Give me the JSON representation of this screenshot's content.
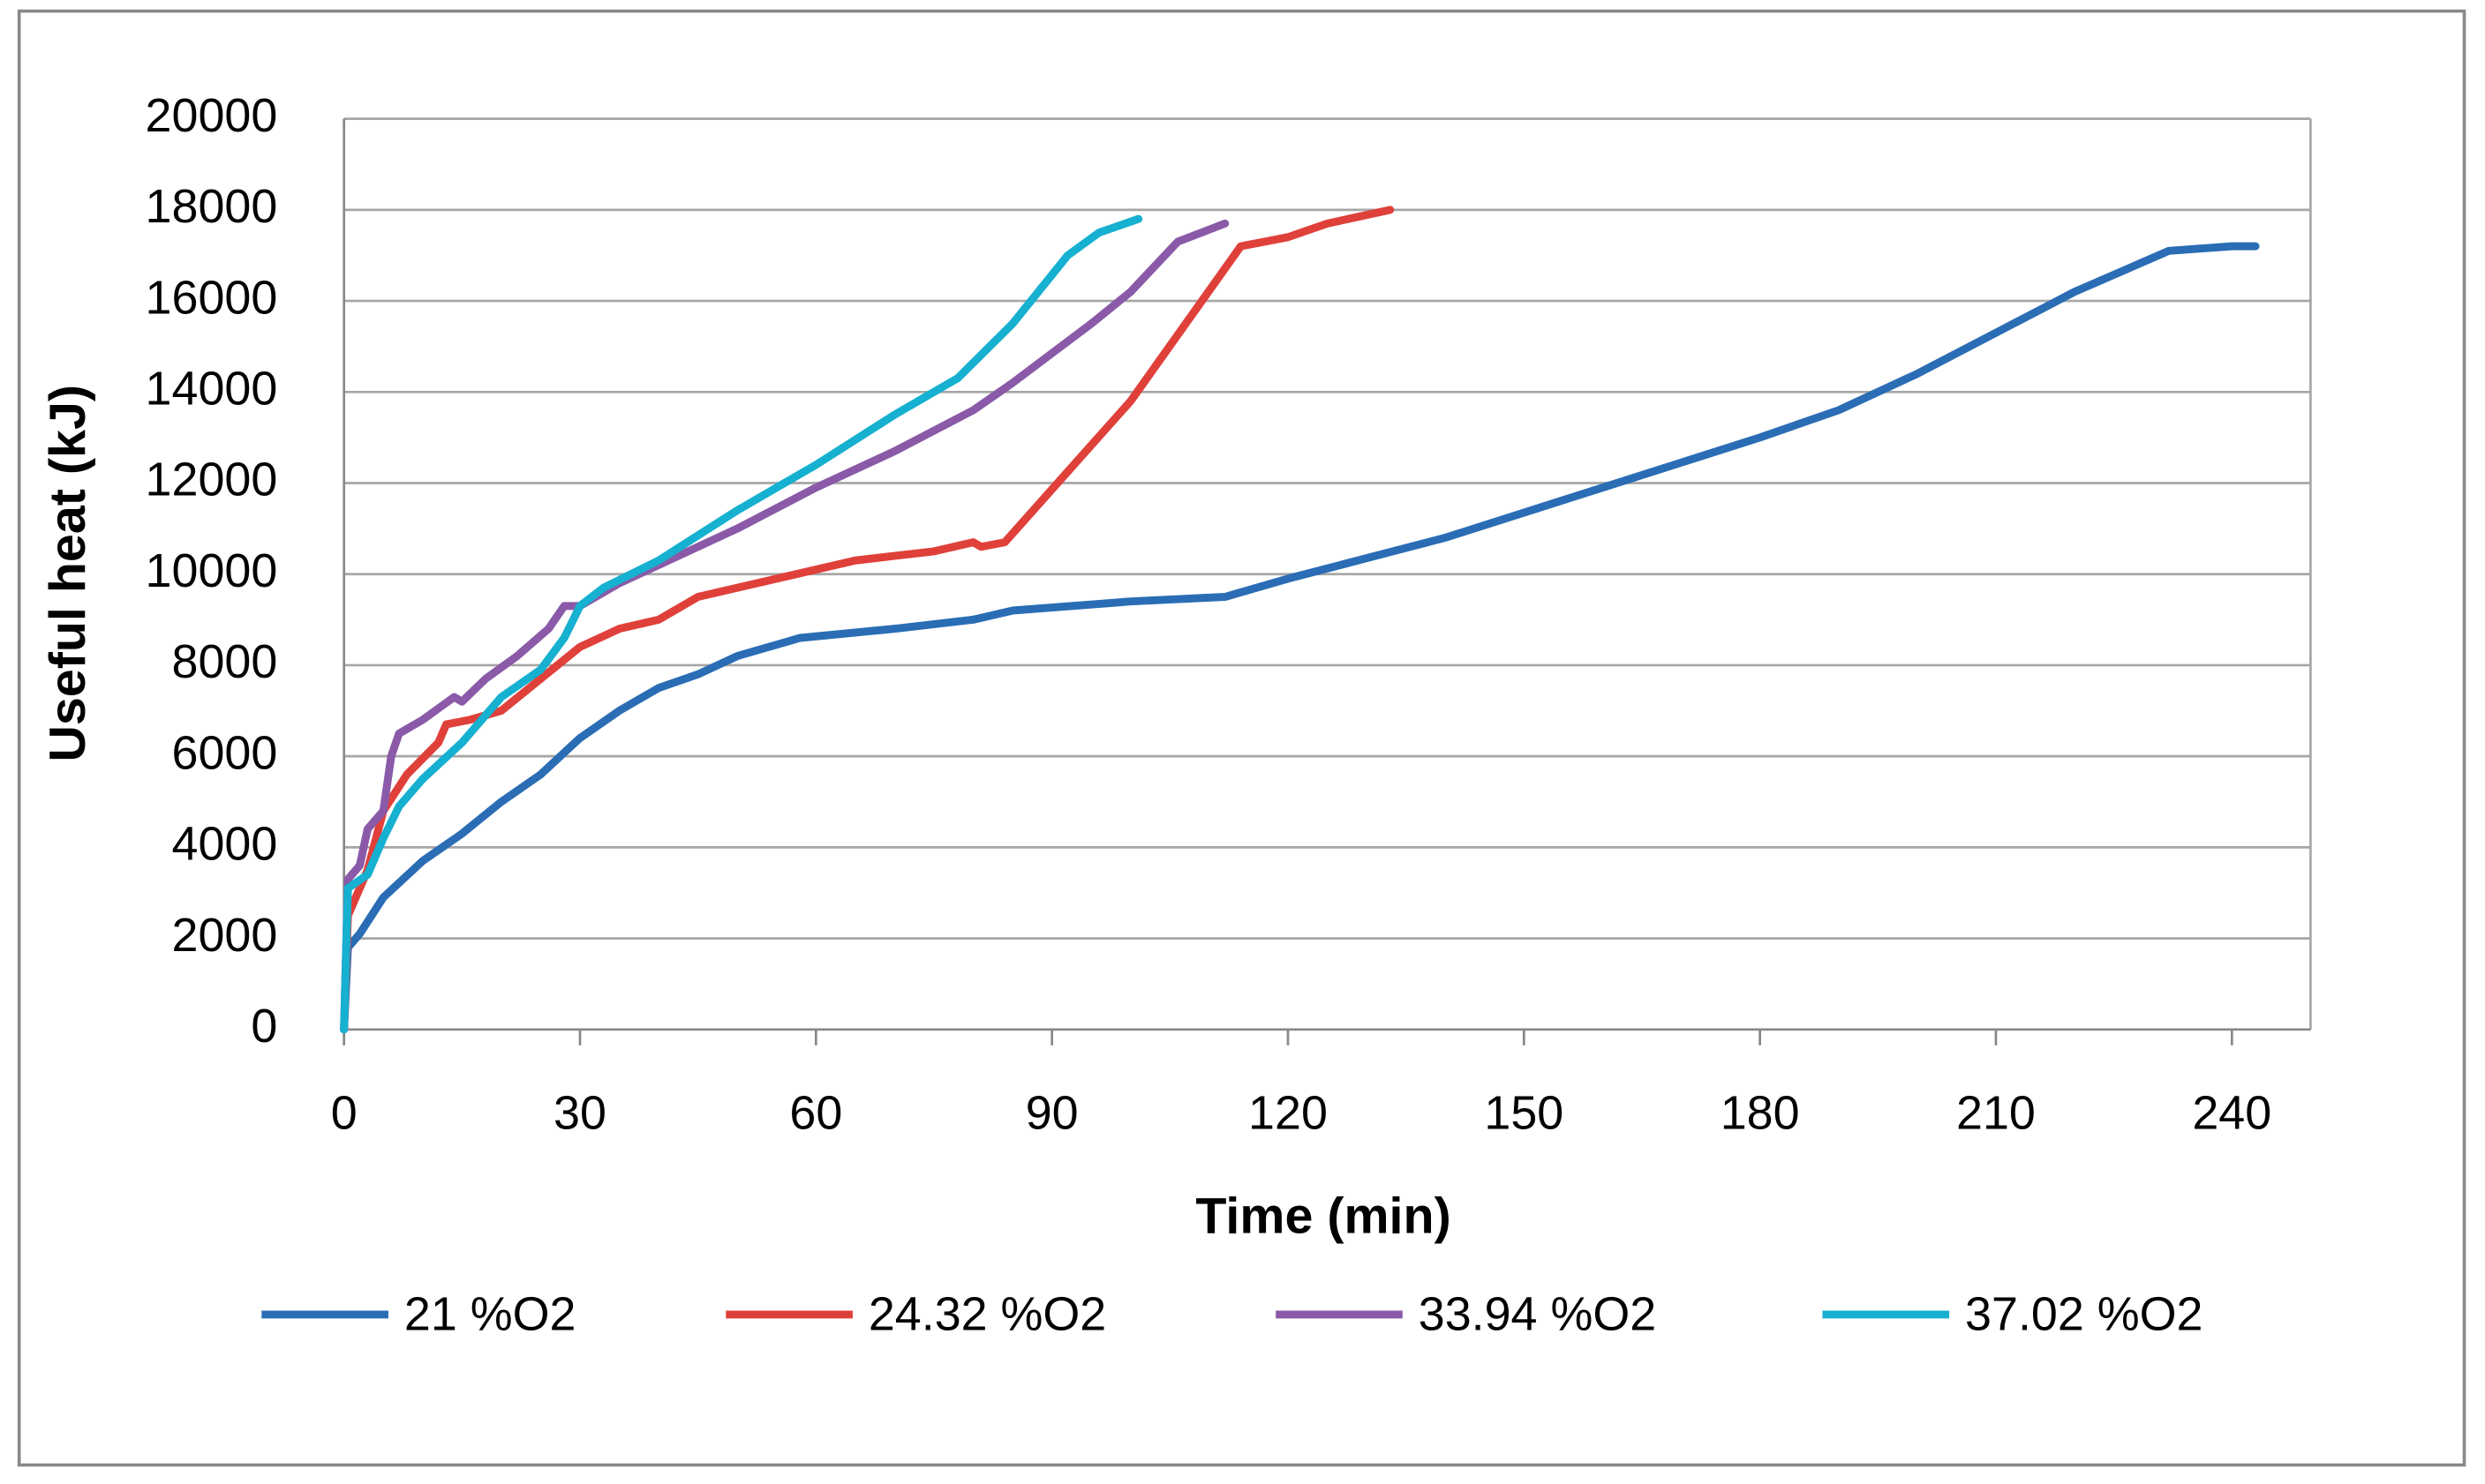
{
  "chart_data": {
    "type": "line",
    "xlabel": "Time (min)",
    "ylabel": "Useful heat (kJ)",
    "xlim": [
      0,
      250
    ],
    "xticks": [
      0,
      30,
      60,
      90,
      120,
      150,
      180,
      210,
      240
    ],
    "ylim": [
      0,
      20000
    ],
    "yticks": [
      0,
      2000,
      4000,
      6000,
      8000,
      10000,
      12000,
      14000,
      16000,
      18000,
      20000
    ],
    "grid": true,
    "legend": "bottom",
    "series": [
      {
        "name": "21 %O2",
        "color": "#2a6db5",
        "x": [
          0,
          0.5,
          2,
          5,
          10,
          15,
          20,
          25,
          30,
          35,
          40,
          45,
          50,
          58,
          70,
          80,
          85,
          100,
          112,
          120,
          140,
          160,
          180,
          190,
          200,
          210,
          220,
          232,
          240,
          243
        ],
        "values": [
          0,
          1800,
          2100,
          2900,
          3700,
          4300,
          5000,
          5600,
          6400,
          7000,
          7500,
          7800,
          8200,
          8600,
          8800,
          9000,
          9200,
          9400,
          9500,
          9900,
          10800,
          11900,
          13000,
          13600,
          14400,
          15300,
          16200,
          17100,
          17200,
          17200
        ]
      },
      {
        "name": "24.32 %O2",
        "color": "#e0403a",
        "x": [
          0,
          0.5,
          3,
          5,
          8,
          12,
          13,
          16,
          20,
          25,
          30,
          35,
          40,
          45,
          55,
          65,
          75,
          80,
          81,
          84,
          100,
          114,
          120,
          125,
          133
        ],
        "values": [
          0,
          2500,
          3500,
          4800,
          5600,
          6300,
          6700,
          6800,
          7000,
          7700,
          8400,
          8800,
          9000,
          9500,
          9900,
          10300,
          10500,
          10700,
          10600,
          10700,
          13800,
          17200,
          17400,
          17700,
          18000
        ]
      },
      {
        "name": "33.94 %O2",
        "color": "#8a5aa8",
        "x": [
          0,
          0.5,
          2,
          3,
          5,
          6,
          7,
          10,
          14,
          15,
          18,
          22,
          26,
          28,
          30,
          35,
          40,
          50,
          60,
          70,
          80,
          85,
          95,
          100,
          106,
          112
        ],
        "values": [
          0,
          3300,
          3600,
          4400,
          4800,
          6000,
          6500,
          6800,
          7300,
          7200,
          7700,
          8200,
          8800,
          9300,
          9300,
          9800,
          10200,
          11000,
          11900,
          12700,
          13600,
          14200,
          15500,
          16200,
          17300,
          17700
        ]
      },
      {
        "name": "37.02 %O2",
        "color": "#16b0d0",
        "x": [
          0,
          0.5,
          3,
          5,
          7,
          10,
          15,
          20,
          25,
          28,
          30,
          33,
          40,
          50,
          60,
          70,
          78,
          85,
          92,
          96,
          101
        ],
        "values": [
          0,
          3100,
          3400,
          4200,
          4900,
          5500,
          6300,
          7300,
          7900,
          8600,
          9300,
          9700,
          10300,
          11400,
          12400,
          13500,
          14300,
          15500,
          17000,
          17500,
          17800
        ]
      }
    ]
  }
}
